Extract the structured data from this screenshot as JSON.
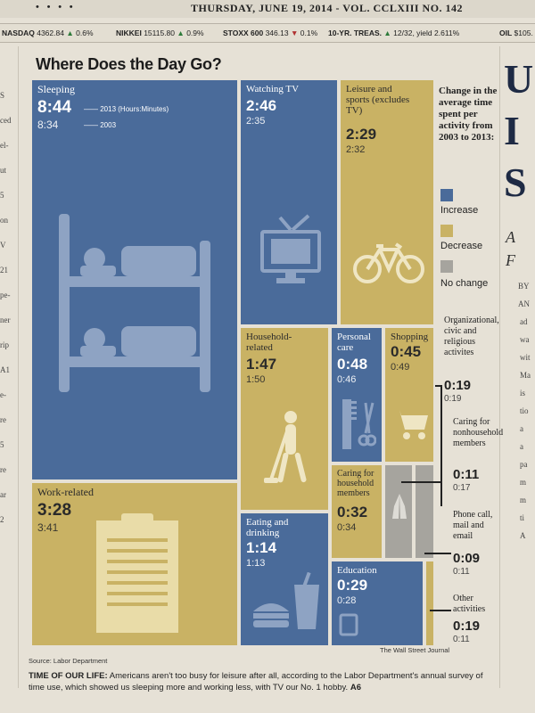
{
  "masthead": {
    "dots": "• • • •",
    "dateline": "THURSDAY, JUNE 19, 2014 - VOL. CCLXIII NO. 142"
  },
  "ticker": [
    {
      "name": "NASDAQ",
      "value": "4362.84",
      "dir": "up",
      "change": "0.6%"
    },
    {
      "name": "NIKKEI",
      "value": "15115.80",
      "dir": "up",
      "change": "0.9%"
    },
    {
      "name": "STOXX 600",
      "value": "346.13",
      "dir": "down",
      "change": "0.1%"
    },
    {
      "name": "10-YR. TREAS.",
      "value": "12/32, yield 2.611%",
      "dir": "up",
      "change": ""
    },
    {
      "name": "OIL",
      "value": "$105.",
      "dir": "",
      "change": ""
    }
  ],
  "left_fragments": [
    "S",
    "ced",
    "el-",
    "ut",
    "5",
    "on",
    "V",
    "21",
    "pe-",
    "ner",
    "rip",
    "A1",
    "e-",
    "re",
    "5",
    "re",
    "ar",
    "2"
  ],
  "right_fragments": {
    "big_letters": [
      "U",
      "I",
      "S"
    ],
    "sub": [
      "A",
      "F"
    ],
    "small": [
      "BY",
      "AN",
      "ad",
      "wa",
      "wit",
      "Ma",
      "is",
      "tio",
      "a",
      "a",
      "pa",
      "m",
      "m",
      "ti",
      "A"
    ]
  },
  "graphic": {
    "title": "Where Does the Day Go?",
    "legend_title": "Change in the average time spent per activity from 2003 to 2013:",
    "legend": [
      {
        "label": "Increase",
        "color": "#4a6b9a"
      },
      {
        "label": "Decrease",
        "color": "#c9b264"
      },
      {
        "label": "No change",
        "color": "#a6a49e"
      }
    ],
    "tiles": {
      "sleeping": {
        "label": "Sleeping",
        "v2013": "8:44",
        "v2003": "8:34",
        "note2013": "2013 (Hours:Minutes)",
        "note2003": "2003"
      },
      "watching_tv": {
        "label": "Watching TV",
        "v2013": "2:46",
        "v2003": "2:35"
      },
      "leisure": {
        "label": "Leisure and sports (excludes TV)",
        "v2013": "2:29",
        "v2003": "2:32"
      },
      "household": {
        "label": "Household-related",
        "v2013": "1:47",
        "v2003": "1:50"
      },
      "personal_care": {
        "label": "Personal care",
        "v2013": "0:48",
        "v2003": "0:46"
      },
      "shopping": {
        "label": "Shopping",
        "v2013": "0:45",
        "v2003": "0:49"
      },
      "work": {
        "label": "Work-related",
        "v2013": "3:28",
        "v2003": "3:41"
      },
      "eating": {
        "label": "Eating and drinking",
        "v2013": "1:14",
        "v2003": "1:13"
      },
      "caring_household": {
        "label": "Caring for household members",
        "v2013": "0:32",
        "v2003": "0:34"
      },
      "education": {
        "label": "Education",
        "v2013": "0:29",
        "v2003": "0:28"
      }
    },
    "side_items": [
      {
        "label": "Organizational, civic and religious activites",
        "v2013": "0:19",
        "v2003": "0:19"
      },
      {
        "label": "Caring for nonhousehold members",
        "v2013": "0:11",
        "v2003": "0:17"
      },
      {
        "label": "Phone call, mail and email",
        "v2013": "0:09",
        "v2003": "0:11"
      },
      {
        "label": "Other activities",
        "v2013": "0:19",
        "v2003": "0:11"
      }
    ],
    "source": "Source: Labor Department",
    "credit": "The Wall Street Journal"
  },
  "caption": {
    "lead": "TIME OF OUR LIFE:",
    "body": "Americans aren't too busy for leisure after all, according to the Labor Department's annual survey of time use, which showed us sleeping more and working less, with TV our No. 1 hobby.",
    "ref": "A6"
  }
}
